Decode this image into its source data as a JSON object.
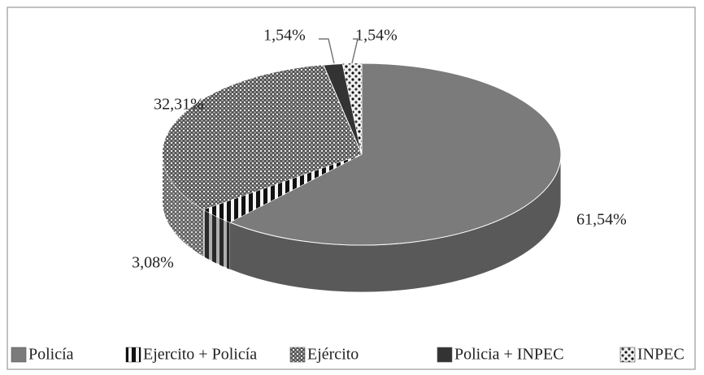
{
  "chart_data": {
    "type": "pie3d",
    "categories": [
      "Policía",
      "Ejercito + Policía",
      "Ejército",
      "Policia + INPEC",
      "INPEC"
    ],
    "values": [
      61.54,
      3.08,
      32.31,
      1.54,
      1.54
    ],
    "value_labels": [
      "61,54%",
      "3,08%",
      "32,31%",
      "1,54%",
      "1,54%"
    ],
    "colors": [
      "#7b7b7b",
      "#f2f2f2",
      "#e6e6e6",
      "#333333",
      "#f0f0f0"
    ],
    "legend": "bottom"
  }
}
